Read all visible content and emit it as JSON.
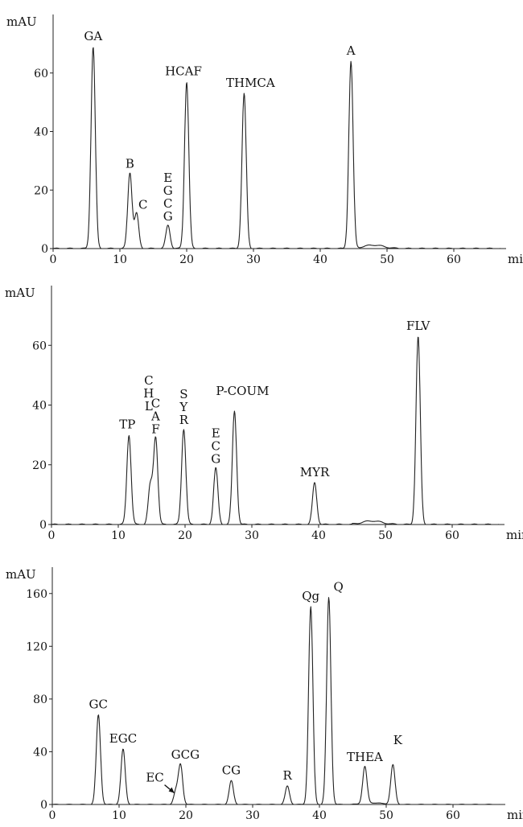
{
  "chart_data": [
    {
      "type": "line",
      "ylabel": "mAU",
      "xlabel": "min",
      "xlim": [
        0,
        70
      ],
      "ylim": [
        0,
        80
      ],
      "xticks": [
        "0",
        "10",
        "20",
        "30",
        "40",
        "50",
        "60"
      ],
      "yticks": [
        "0",
        "20",
        "40",
        "60"
      ],
      "peaks": [
        {
          "label": "GA",
          "t": 6.0,
          "h": 69
        },
        {
          "label": "B",
          "t": 11.5,
          "h": 26
        },
        {
          "label": "C",
          "t": 12.5,
          "h": 12
        },
        {
          "label": "EGCG",
          "t": 17.2,
          "h": 8
        },
        {
          "label": "HCAF",
          "t": 20.0,
          "h": 57
        },
        {
          "label": "THMCA",
          "t": 28.6,
          "h": 53
        },
        {
          "label": "A",
          "t": 44.6,
          "h": 64
        }
      ]
    },
    {
      "type": "line",
      "ylabel": "mAU",
      "xlabel": "min",
      "xlim": [
        0,
        70
      ],
      "ylim": [
        0,
        80
      ],
      "xticks": [
        "0",
        "10",
        "20",
        "30",
        "40",
        "50",
        "60"
      ],
      "yticks": [
        "0",
        "20",
        "40",
        "60"
      ],
      "peaks": [
        {
          "label": "TP",
          "t": 11.6,
          "h": 30
        },
        {
          "label": "CHL",
          "t": 14.8,
          "h": 13
        },
        {
          "label": "CAF",
          "t": 15.6,
          "h": 29
        },
        {
          "label": "SYR",
          "t": 19.8,
          "h": 32
        },
        {
          "label": "ECG",
          "t": 24.6,
          "h": 19
        },
        {
          "label": "P-COUM",
          "t": 27.4,
          "h": 38
        },
        {
          "label": "MYR",
          "t": 39.4,
          "h": 14
        },
        {
          "label": "FLV",
          "t": 54.9,
          "h": 63
        }
      ]
    },
    {
      "type": "line",
      "ylabel": "mAU",
      "xlabel": "min",
      "xlim": [
        0,
        70
      ],
      "ylim": [
        0,
        180
      ],
      "xticks": [
        "0",
        "10",
        "20",
        "30",
        "40",
        "50",
        "60"
      ],
      "yticks": [
        "0",
        "40",
        "80",
        "120",
        "160"
      ],
      "peaks": [
        {
          "label": "GC",
          "t": 6.9,
          "h": 68
        },
        {
          "label": "EGC",
          "t": 10.6,
          "h": 42
        },
        {
          "label": "EC",
          "t": 18.5,
          "h": 10
        },
        {
          "label": "GCG",
          "t": 19.2,
          "h": 30
        },
        {
          "label": "CG",
          "t": 26.8,
          "h": 18
        },
        {
          "label": "R",
          "t": 35.2,
          "h": 14
        },
        {
          "label": "Qg",
          "t": 38.7,
          "h": 150
        },
        {
          "label": "Q",
          "t": 41.4,
          "h": 157
        },
        {
          "label": "THEA",
          "t": 46.8,
          "h": 28
        },
        {
          "label": "K",
          "t": 51.0,
          "h": 30
        }
      ]
    }
  ]
}
